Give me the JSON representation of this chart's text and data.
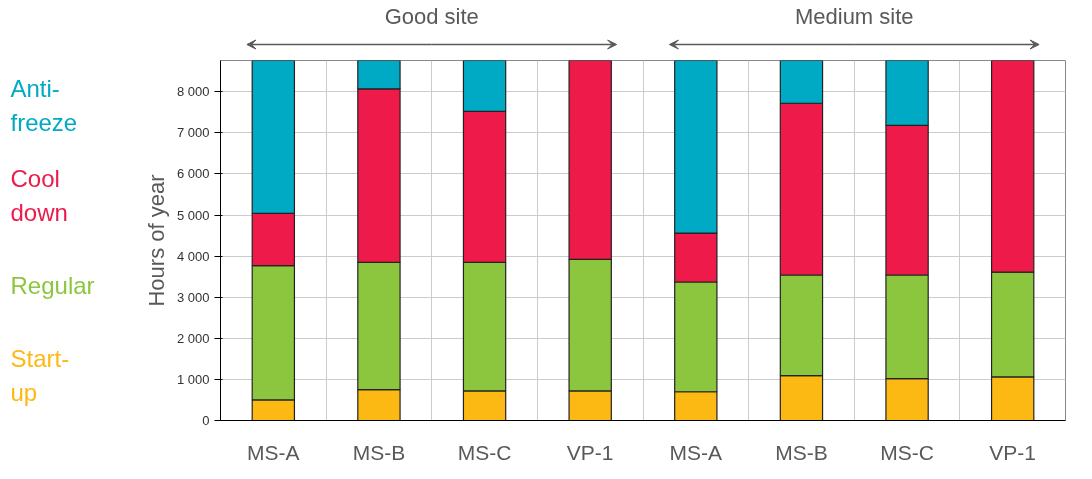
{
  "chart_data": {
    "type": "bar",
    "stacked": true,
    "ylabel": "Hours of year",
    "categories": [
      "MS-A",
      "MS-B",
      "MS-C",
      "VP-1",
      "MS-A",
      "MS-B",
      "MS-C",
      "VP-1"
    ],
    "series": [
      {
        "name": "Start-up",
        "color": "#fdb913",
        "values": [
          500,
          750,
          720,
          720,
          700,
          1090,
          1020,
          1060
        ]
      },
      {
        "name": "Regular",
        "color": "#8cc63f",
        "values": [
          3270,
          3100,
          3130,
          3200,
          2670,
          2450,
          2520,
          2550
        ]
      },
      {
        "name": "Cool down",
        "color": "#ed1a4a",
        "values": [
          1270,
          4220,
          3670,
          4840,
          1190,
          4180,
          3640,
          5150
        ]
      },
      {
        "name": "Anti-freeze",
        "color": "#00aac4",
        "values": [
          3720,
          690,
          1240,
          0,
          4200,
          1040,
          1580,
          0
        ]
      }
    ],
    "ylim": [
      0,
      8760
    ],
    "yticks": [
      0,
      {
        "value": 1000,
        "label": "1 000"
      },
      {
        "value": 2000,
        "label": "2 000"
      },
      {
        "value": 3000,
        "label": "3 000"
      },
      {
        "value": 4000,
        "label": "4 000"
      },
      {
        "value": 5000,
        "label": "5 000"
      },
      {
        "value": 6000,
        "label": "6 000"
      },
      {
        "value": 7000,
        "label": "7 000"
      },
      {
        "value": 8000,
        "label": "8 000"
      }
    ],
    "annotations": [
      "Good site",
      "Medium site"
    ],
    "grid": true,
    "legend": "left"
  }
}
